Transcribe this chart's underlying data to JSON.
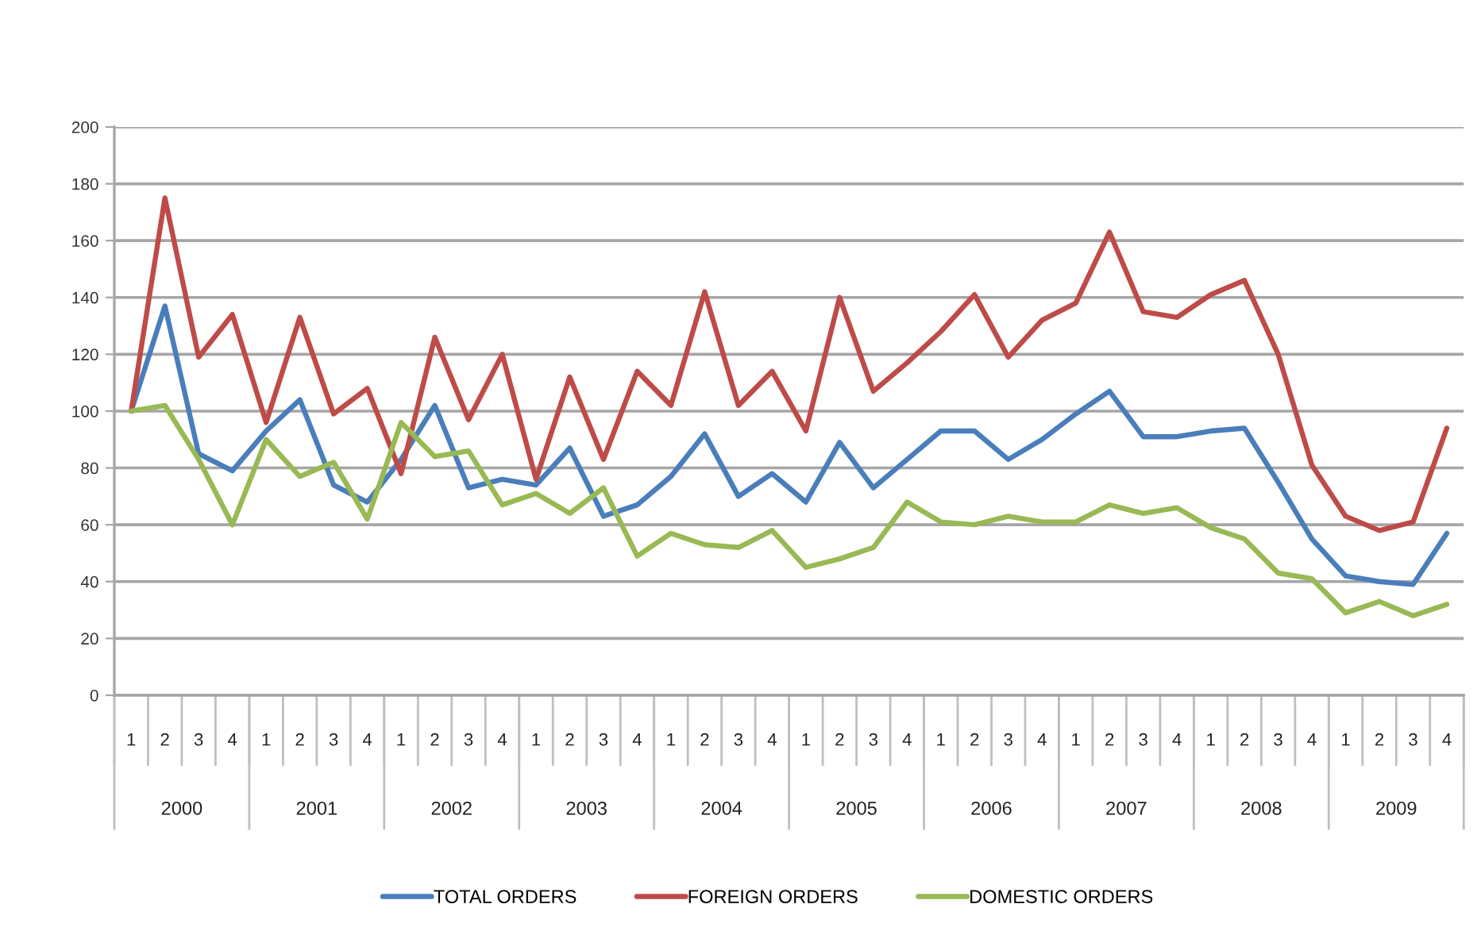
{
  "chart_data": {
    "type": "line",
    "categories": [
      "1",
      "2",
      "3",
      "4",
      "1",
      "2",
      "3",
      "4",
      "1",
      "2",
      "3",
      "4",
      "1",
      "2",
      "3",
      "4",
      "1",
      "2",
      "3",
      "4",
      "1",
      "2",
      "3",
      "4",
      "1",
      "2",
      "3",
      "4",
      "1",
      "2",
      "3",
      "4",
      "1",
      "2",
      "3",
      "4",
      "1",
      "2",
      "3",
      "4"
    ],
    "annotations": [
      "2000",
      "2001",
      "2002",
      "2003",
      "2004",
      "2005",
      "2006",
      "2007",
      "2008",
      "2009"
    ],
    "series": [
      {
        "name": "TOTAL ORDERS",
        "color": "#4a7ebb",
        "values": [
          100,
          137,
          85,
          79,
          93,
          104,
          74,
          68,
          83,
          102,
          73,
          76,
          74,
          87,
          63,
          67,
          77,
          92,
          70,
          78,
          68,
          89,
          73,
          83,
          93,
          93,
          83,
          90,
          99,
          107,
          91,
          91,
          93,
          94,
          75,
          55,
          42,
          40,
          39,
          57
        ]
      },
      {
        "name": "FOREIGN ORDERS",
        "color": "#be4b48",
        "values": [
          100,
          175,
          119,
          134,
          96,
          133,
          99,
          108,
          78,
          126,
          97,
          120,
          76,
          112,
          83,
          114,
          102,
          142,
          102,
          114,
          93,
          140,
          107,
          117,
          128,
          141,
          119,
          132,
          138,
          163,
          135,
          133,
          141,
          146,
          120,
          81,
          63,
          58,
          61,
          94
        ]
      },
      {
        "name": "DOMESTIC ORDERS",
        "color": "#98b954",
        "values": [
          100,
          102,
          83,
          60,
          90,
          77,
          82,
          62,
          96,
          84,
          86,
          67,
          71,
          64,
          73,
          49,
          57,
          53,
          52,
          58,
          45,
          48,
          52,
          68,
          61,
          60,
          63,
          61,
          61,
          67,
          64,
          66,
          59,
          55,
          43,
          41,
          29,
          33,
          28,
          32
        ]
      }
    ],
    "ylim": [
      0,
      200
    ],
    "yticks": [
      0,
      20,
      40,
      60,
      80,
      100,
      120,
      140,
      160,
      180,
      200
    ],
    "grid": "y",
    "legend": "bottom",
    "marker": "none",
    "line_style": "solid"
  }
}
